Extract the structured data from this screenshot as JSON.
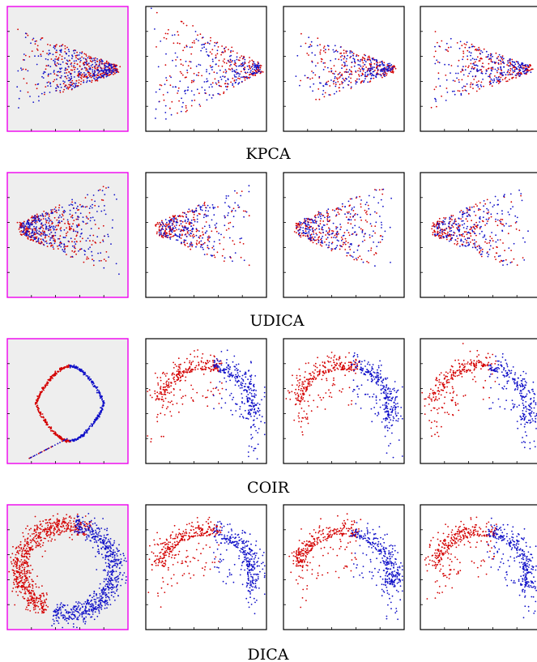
{
  "figure": {
    "rows": [
      {
        "method": "KPCA"
      },
      {
        "method": "UDICA"
      },
      {
        "method": "COIR"
      },
      {
        "method": "DICA"
      }
    ]
  },
  "colors": {
    "class_a": "#d40000",
    "class_b": "#1010c8",
    "highlight_border": "#ee00ee",
    "highlight_fill": "#eeeeee"
  },
  "chart_data": [
    {
      "type": "scatter",
      "row": "KPCA",
      "column": 1,
      "highlighted": true,
      "shape": "cone-right",
      "points_per_class": 300
    },
    {
      "type": "scatter",
      "row": "KPCA",
      "column": 2,
      "highlighted": false,
      "shape": "cone-right-wide",
      "points_per_class": 220
    },
    {
      "type": "scatter",
      "row": "KPCA",
      "column": 3,
      "highlighted": false,
      "shape": "cone-right",
      "points_per_class": 220
    },
    {
      "type": "scatter",
      "row": "KPCA",
      "column": 4,
      "highlighted": false,
      "shape": "cone-right",
      "points_per_class": 220
    },
    {
      "type": "scatter",
      "row": "UDICA",
      "column": 1,
      "highlighted": true,
      "shape": "cone-left",
      "points_per_class": 300
    },
    {
      "type": "scatter",
      "row": "UDICA",
      "column": 2,
      "highlighted": false,
      "shape": "cone-left",
      "points_per_class": 220
    },
    {
      "type": "scatter",
      "row": "UDICA",
      "column": 3,
      "highlighted": false,
      "shape": "cone-left",
      "points_per_class": 220
    },
    {
      "type": "scatter",
      "row": "UDICA",
      "column": 4,
      "highlighted": false,
      "shape": "cone-left",
      "points_per_class": 220
    },
    {
      "type": "scatter",
      "row": "COIR",
      "column": 1,
      "highlighted": true,
      "shape": "loop",
      "points_per_class": 320
    },
    {
      "type": "scatter",
      "row": "COIR",
      "column": 2,
      "highlighted": false,
      "shape": "arc-top",
      "points_per_class": 300
    },
    {
      "type": "scatter",
      "row": "COIR",
      "column": 3,
      "highlighted": false,
      "shape": "arc-top",
      "points_per_class": 300
    },
    {
      "type": "scatter",
      "row": "COIR",
      "column": 4,
      "highlighted": false,
      "shape": "arc-top",
      "points_per_class": 260
    },
    {
      "type": "scatter",
      "row": "DICA",
      "column": 1,
      "highlighted": true,
      "shape": "ring",
      "points_per_class": 700
    },
    {
      "type": "scatter",
      "row": "DICA",
      "column": 2,
      "highlighted": false,
      "shape": "arc-top",
      "points_per_class": 320
    },
    {
      "type": "scatter",
      "row": "DICA",
      "column": 3,
      "highlighted": false,
      "shape": "arc-top",
      "points_per_class": 320
    },
    {
      "type": "scatter",
      "row": "DICA",
      "column": 4,
      "highlighted": false,
      "shape": "arc-top",
      "points_per_class": 320
    }
  ]
}
